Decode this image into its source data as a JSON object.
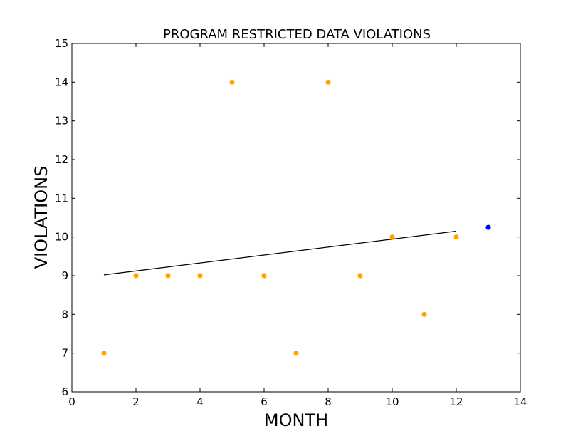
{
  "chart_data": {
    "type": "scatter",
    "title": "PROGRAM RESTRICTED DATA VIOLATIONS",
    "xlabel": "MONTH",
    "ylabel": "VIOLATIONS",
    "xlim": [
      0,
      14
    ],
    "ylim": [
      6,
      15
    ],
    "xticks": [
      0,
      2,
      4,
      6,
      8,
      10,
      12,
      14
    ],
    "yticks": [
      6,
      7,
      8,
      9,
      10,
      11,
      12,
      13,
      14,
      15
    ],
    "grid": false,
    "series": [
      {
        "kind": "scatter",
        "color": "#ffa500",
        "x": [
          1,
          2,
          3,
          4,
          5,
          6,
          7,
          8,
          9,
          10,
          11,
          12
        ],
        "y": [
          7,
          9,
          9,
          9,
          14,
          9,
          7,
          14,
          9,
          10,
          8,
          10
        ]
      },
      {
        "kind": "scatter",
        "color": "#0000ff",
        "x": [
          13
        ],
        "y": [
          10.25
        ]
      },
      {
        "kind": "line",
        "color": "#000000",
        "x": [
          1,
          12
        ],
        "y": [
          9.02,
          10.15
        ]
      }
    ]
  }
}
